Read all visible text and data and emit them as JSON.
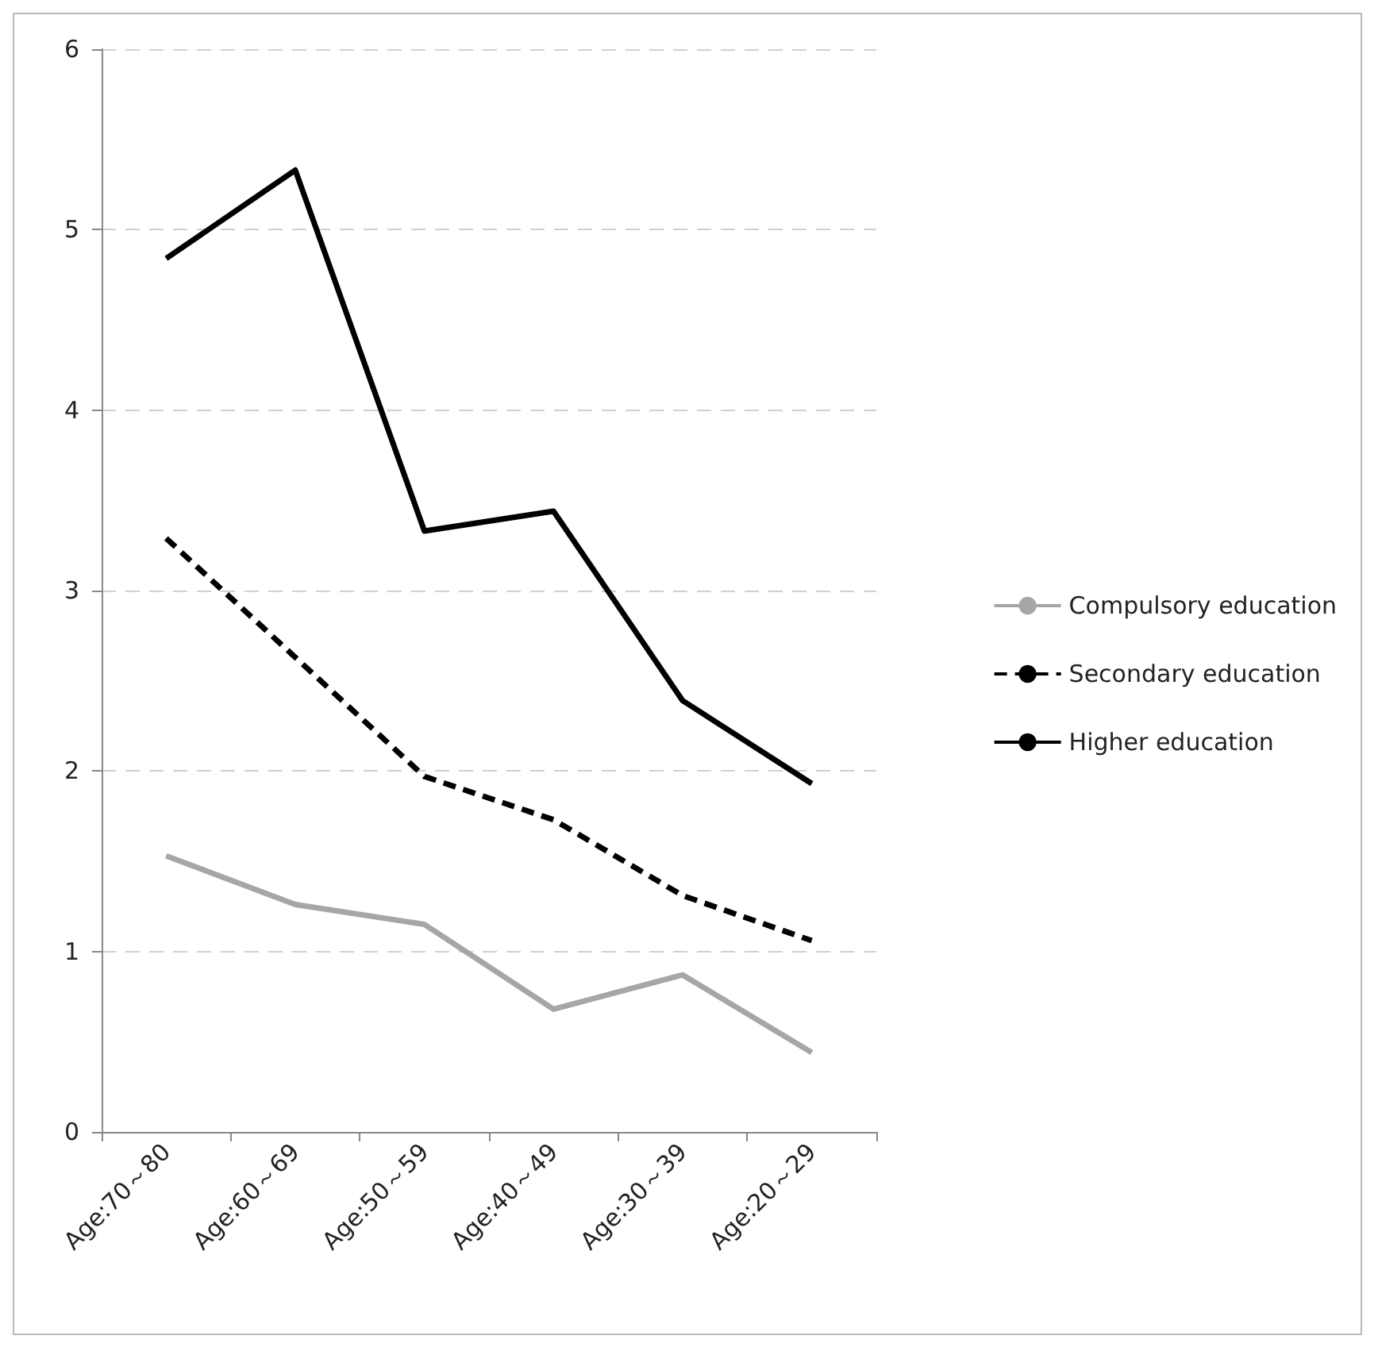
{
  "chart_data": {
    "type": "line",
    "categories": [
      "Age:70～80",
      "Age:60～69",
      "Age:50～59",
      "Age:40～49",
      "Age:30～39",
      "Age:20～29"
    ],
    "series": [
      {
        "name": "Compulsory education",
        "color": "#a6a6a6",
        "values": [
          1.53,
          1.26,
          1.15,
          0.68,
          0.87,
          0.44
        ]
      },
      {
        "name": "Secondary education",
        "color": "#000000",
        "line_style": "dashed",
        "values": [
          3.29,
          2.63,
          1.97,
          1.73,
          1.31,
          1.06
        ]
      },
      {
        "name": "Higher education",
        "color": "#000000",
        "values": [
          4.84,
          5.33,
          3.33,
          3.44,
          2.39,
          1.93
        ]
      }
    ],
    "ylim": [
      0,
      6
    ],
    "yticks": [
      0,
      1,
      2,
      3,
      4,
      5,
      6
    ],
    "grid": "y",
    "legend": "right",
    "marker": "none",
    "line_style": "solid"
  }
}
